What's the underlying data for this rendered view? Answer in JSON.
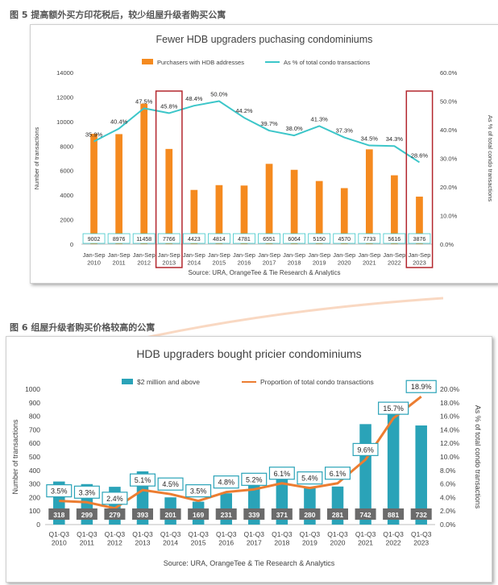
{
  "figure1": {
    "caption": "图 5 提高额外买方印花税后，较少组屋升级者购买公寓",
    "colors": {
      "bar": "#f58a1f",
      "line": "#3cc6c9",
      "highlight": "#b3262d"
    },
    "chart_data": {
      "type": "bar",
      "title": "Fewer HDB upgraders puchasing condominiums",
      "source": "Source: URA, OrangeTee & Tie Research & Analytics",
      "categories": [
        [
          "Jan-Sep",
          "2010"
        ],
        [
          "Jan-Sep",
          "2011"
        ],
        [
          "Jan-Sep",
          "2012"
        ],
        [
          "Jan-Sep",
          "2013"
        ],
        [
          "Jan-Sep",
          "2014"
        ],
        [
          "Jan-Sep",
          "2015"
        ],
        [
          "Jan-Sep",
          "2016"
        ],
        [
          "Jan-Sep",
          "2017"
        ],
        [
          "Jan-Sep",
          "2018"
        ],
        [
          "Jan-Sep",
          "2019"
        ],
        [
          "Jan-Sep",
          "2020"
        ],
        [
          "Jan-Sep",
          "2021"
        ],
        [
          "Jan-Sep",
          "2022"
        ],
        [
          "Jan-Sep",
          "2023"
        ]
      ],
      "series": [
        {
          "name": "Purchasers with HDB addresses",
          "type": "bar",
          "axis": "left",
          "values": [
            9002,
            8976,
            11458,
            7766,
            4423,
            4814,
            4781,
            6551,
            6064,
            5150,
            4570,
            7733,
            5616,
            3876
          ],
          "labels": [
            "9002",
            "8976",
            "11458",
            "7766",
            "4423",
            "4814",
            "4781",
            "6551",
            "6064",
            "5150",
            "4570",
            "7733",
            "5616",
            "3876"
          ]
        },
        {
          "name": "As % of total condo transactions",
          "type": "line",
          "axis": "right",
          "values": [
            35.9,
            40.4,
            47.5,
            45.8,
            48.4,
            50.0,
            44.2,
            39.7,
            38.0,
            41.3,
            37.3,
            34.5,
            34.3,
            28.6
          ],
          "labels": [
            "35.9%",
            "40.4%",
            "47.5%",
            "45.8%",
            "48.4%",
            "50.0%",
            "44.2%",
            "39.7%",
            "38.0%",
            "41.3%",
            "37.3%",
            "34.5%",
            "34.3%",
            "28.6%"
          ]
        }
      ],
      "ylabel": "Number of transactions",
      "ylabel_right": "As % of total condo transactions",
      "ylim": [
        0,
        14000
      ],
      "ylim_right": [
        0,
        60
      ],
      "y_ticks": [
        "0",
        "2000",
        "4000",
        "6000",
        "8000",
        "10000",
        "12000",
        "14000"
      ],
      "y_ticks_right": [
        "0.0%",
        "10.0%",
        "20.0%",
        "30.0%",
        "40.0%",
        "50.0%",
        "60.0%"
      ],
      "highlighted_categories": [
        3,
        13
      ],
      "legend_position": "top-center",
      "grid": false
    }
  },
  "figure2": {
    "caption": "图 6 组屋升级者购买价格较高的公寓",
    "colors": {
      "bar": "#2aa3b8",
      "line": "#ec7d31",
      "label_box": "#6b6b6b"
    },
    "chart_data": {
      "type": "bar",
      "title": "HDB upgraders bought pricier condominiums",
      "source": "Source: URA, OrangeTee & Tie Research & Analytics",
      "categories": [
        [
          "Q1-Q3",
          "2010"
        ],
        [
          "Q1-Q3",
          "2011"
        ],
        [
          "Q1-Q3",
          "2012"
        ],
        [
          "Q1-Q3",
          "2013"
        ],
        [
          "Q1-Q3",
          "2014"
        ],
        [
          "Q1-Q3",
          "2015"
        ],
        [
          "Q1-Q3",
          "2016"
        ],
        [
          "Q1-Q3",
          "2017"
        ],
        [
          "Q1-Q3",
          "2018"
        ],
        [
          "Q1-Q3",
          "2019"
        ],
        [
          "Q1-Q3",
          "2020"
        ],
        [
          "Q1-Q3",
          "2021"
        ],
        [
          "Q1-Q3",
          "2022"
        ],
        [
          "Q1-Q3",
          "2023"
        ]
      ],
      "series": [
        {
          "name": "$2 million and above",
          "type": "bar",
          "axis": "left",
          "values": [
            318,
            299,
            279,
            393,
            201,
            169,
            231,
            339,
            371,
            280,
            281,
            742,
            881,
            732
          ],
          "labels": [
            "318",
            "299",
            "279",
            "393",
            "201",
            "169",
            "231",
            "339",
            "371",
            "280",
            "281",
            "742",
            "881",
            "732"
          ]
        },
        {
          "name": "Proportion of total condo transactions",
          "type": "line",
          "axis": "right",
          "values": [
            3.5,
            3.3,
            2.4,
            5.1,
            4.5,
            3.5,
            4.8,
            5.2,
            6.1,
            5.4,
            6.1,
            9.6,
            15.7,
            18.9
          ],
          "labels": [
            "3.5%",
            "3.3%",
            "2.4%",
            "5.1%",
            "4.5%",
            "3.5%",
            "4.8%",
            "5.2%",
            "6.1%",
            "5.4%",
            "6.1%",
            "9.6%",
            "15.7%",
            "18.9%"
          ]
        }
      ],
      "ylabel": "Number of transactions",
      "ylabel_right": "As % of total condo transactions",
      "ylim": [
        0,
        1000
      ],
      "ylim_right": [
        0,
        20
      ],
      "y_ticks": [
        "0",
        "100",
        "200",
        "300",
        "400",
        "500",
        "600",
        "700",
        "800",
        "900",
        "1000"
      ],
      "y_ticks_right": [
        "0.0%",
        "2.0%",
        "4.0%",
        "6.0%",
        "8.0%",
        "10.0%",
        "12.0%",
        "14.0%",
        "16.0%",
        "18.0%",
        "20.0%"
      ],
      "legend_position": "top-center",
      "grid": false
    }
  }
}
